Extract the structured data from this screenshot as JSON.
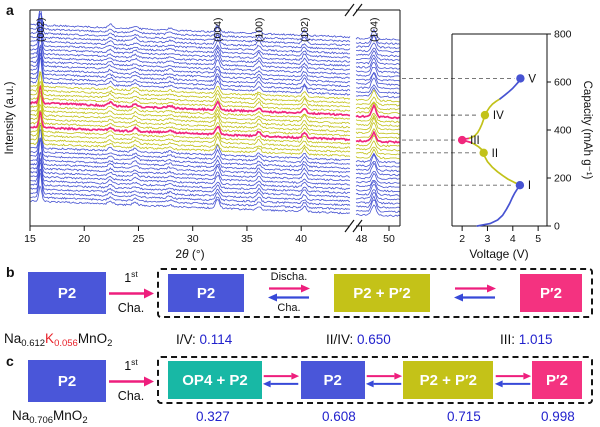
{
  "figure": {
    "panel_a_label": "a",
    "panel_b_label": "b",
    "panel_c_label": "c"
  },
  "colors": {
    "phase_blue": "#4a56d9",
    "phase_yellow": "#c4c218",
    "phase_pink": "#f43280",
    "phase_teal": "#18b8a5",
    "value_text_blue": "#2222cd",
    "arrow_pink": "#ee1e7d",
    "arrow_blue": "#3749d8"
  },
  "chart_data": [
    {
      "type": "line",
      "name": "in-situ-xrd-waterfall",
      "xlabel": "2θ (°)",
      "ylabel": "Intensity (a.u.)",
      "x_segments": [
        {
          "range": [
            15,
            44.5
          ],
          "ticks": [
            15,
            20,
            25,
            30,
            35,
            40
          ]
        },
        {
          "range": [
            47.6,
            50.8
          ],
          "ticks": [
            48,
            50
          ]
        }
      ],
      "peak_labels": [
        {
          "label": "(002)",
          "two_theta": 15.95
        },
        {
          "label": "(004)",
          "two_theta": 32.3
        },
        {
          "label": "(100)",
          "two_theta": 36.1
        },
        {
          "label": "(102)",
          "two_theta": 40.3
        },
        {
          "label": "(104)",
          "two_theta": 48.9
        }
      ],
      "n_scans": 44,
      "scan_groups": [
        {
          "count": 14,
          "color": "#4753d2"
        },
        {
          "count": 4,
          "color": "#c2c21a"
        },
        {
          "count": 1,
          "color": "#f0277c"
        },
        {
          "count": 5,
          "color": "#c2c21a"
        },
        {
          "count": 1,
          "color": "#f0277c"
        },
        {
          "count": 4,
          "color": "#c2c21a"
        },
        {
          "count": 15,
          "color": "#4753d2"
        }
      ]
    },
    {
      "type": "line",
      "name": "voltage-capacity-profile",
      "xlabel": "Voltage (V)",
      "ylabel": "Capacity (mAh g⁻¹)",
      "xlim": [
        1.6,
        5.35
      ],
      "x_ticks": [
        2,
        3,
        4,
        5
      ],
      "ylim": [
        0,
        800
      ],
      "y_ticks": [
        0,
        200,
        400,
        600,
        800
      ],
      "legend": "none",
      "grid": false,
      "segments": [
        {
          "color": "#4753d2",
          "points": [
            [
              2.6,
              0
            ],
            [
              3.1,
              10
            ],
            [
              3.4,
              25
            ],
            [
              3.6,
              45
            ],
            [
              3.75,
              70
            ],
            [
              3.88,
              95
            ],
            [
              3.98,
              118
            ],
            [
              4.08,
              138
            ],
            [
              4.18,
              155
            ],
            [
              4.3,
              170
            ]
          ]
        },
        {
          "color": "#c2c21a",
          "points": [
            [
              4.3,
              170
            ],
            [
              4.05,
              182
            ],
            [
              3.8,
              196
            ],
            [
              3.6,
              210
            ],
            [
              3.4,
              226
            ],
            [
              3.2,
              244
            ],
            [
              3.0,
              268
            ],
            [
              2.9,
              288
            ],
            [
              2.85,
              305
            ],
            [
              2.78,
              318
            ],
            [
              2.65,
              330
            ],
            [
              2.5,
              340
            ],
            [
              2.35,
              348
            ]
          ]
        },
        {
          "color": "#f0277c",
          "points": [
            [
              2.35,
              348
            ],
            [
              2.15,
              354
            ],
            [
              2.0,
              358
            ],
            [
              2.1,
              362
            ],
            [
              2.3,
              366
            ]
          ]
        },
        {
          "color": "#c2c21a",
          "points": [
            [
              2.3,
              366
            ],
            [
              2.5,
              376
            ],
            [
              2.62,
              390
            ],
            [
              2.7,
              406
            ],
            [
              2.78,
              424
            ],
            [
              2.84,
              442
            ],
            [
              2.9,
              462
            ],
            [
              2.98,
              478
            ],
            [
              3.08,
              494
            ],
            [
              3.2,
              508
            ],
            [
              3.35,
              520
            ],
            [
              3.5,
              530
            ]
          ]
        },
        {
          "color": "#4753d2",
          "points": [
            [
              3.5,
              530
            ],
            [
              3.68,
              545
            ],
            [
              3.85,
              560
            ],
            [
              4.0,
              574
            ],
            [
              4.12,
              588
            ],
            [
              4.22,
              600
            ],
            [
              4.3,
              615
            ]
          ]
        }
      ],
      "markers": [
        {
          "label": "I",
          "voltage": 4.28,
          "capacity": 170,
          "color": "#4753d2"
        },
        {
          "label": "II",
          "voltage": 2.85,
          "capacity": 305,
          "color": "#c2c21a"
        },
        {
          "label": "III",
          "voltage": 2.0,
          "capacity": 358,
          "color": "#f0277c"
        },
        {
          "label": "IV",
          "voltage": 2.9,
          "capacity": 462,
          "color": "#c2c21a"
        },
        {
          "label": "V",
          "voltage": 4.3,
          "capacity": 615,
          "color": "#4753d2"
        }
      ]
    }
  ],
  "panel_b": {
    "initial_box": "P2",
    "first_charge": {
      "num": "1",
      "sup": "st",
      "label": "Cha."
    },
    "eq1_top": "Discha.",
    "eq1_bottom": "Cha.",
    "boxes": [
      {
        "label": "P2"
      },
      {
        "label": "P2 + P′2"
      },
      {
        "label": "P′2"
      }
    ],
    "formula": [
      {
        "t": "Na"
      },
      {
        "t": "0.612",
        "sub": true
      },
      {
        "t": "K",
        "red": true
      },
      {
        "t": "0.056",
        "sub": true,
        "red": true
      },
      {
        "t": "MnO"
      },
      {
        "t": "2",
        "sub": true
      }
    ],
    "ratios": [
      {
        "label": "I/V:",
        "value": "0.114"
      },
      {
        "label": "II/IV:",
        "value": "0.650"
      },
      {
        "label": "III:",
        "value": "1.015"
      }
    ]
  },
  "panel_c": {
    "initial_box": "P2",
    "first_charge": {
      "num": "1",
      "sup": "st",
      "label": "Cha."
    },
    "boxes": [
      {
        "label": "OP4 + P2"
      },
      {
        "label": "P2"
      },
      {
        "label": "P2 + P′2"
      },
      {
        "label": "P′2"
      }
    ],
    "formula": [
      {
        "t": "Na"
      },
      {
        "t": "0.706",
        "sub": true
      },
      {
        "t": "MnO"
      },
      {
        "t": "2",
        "sub": true
      }
    ],
    "values": [
      "0.327",
      "0.608",
      "0.715",
      "0.998"
    ]
  }
}
